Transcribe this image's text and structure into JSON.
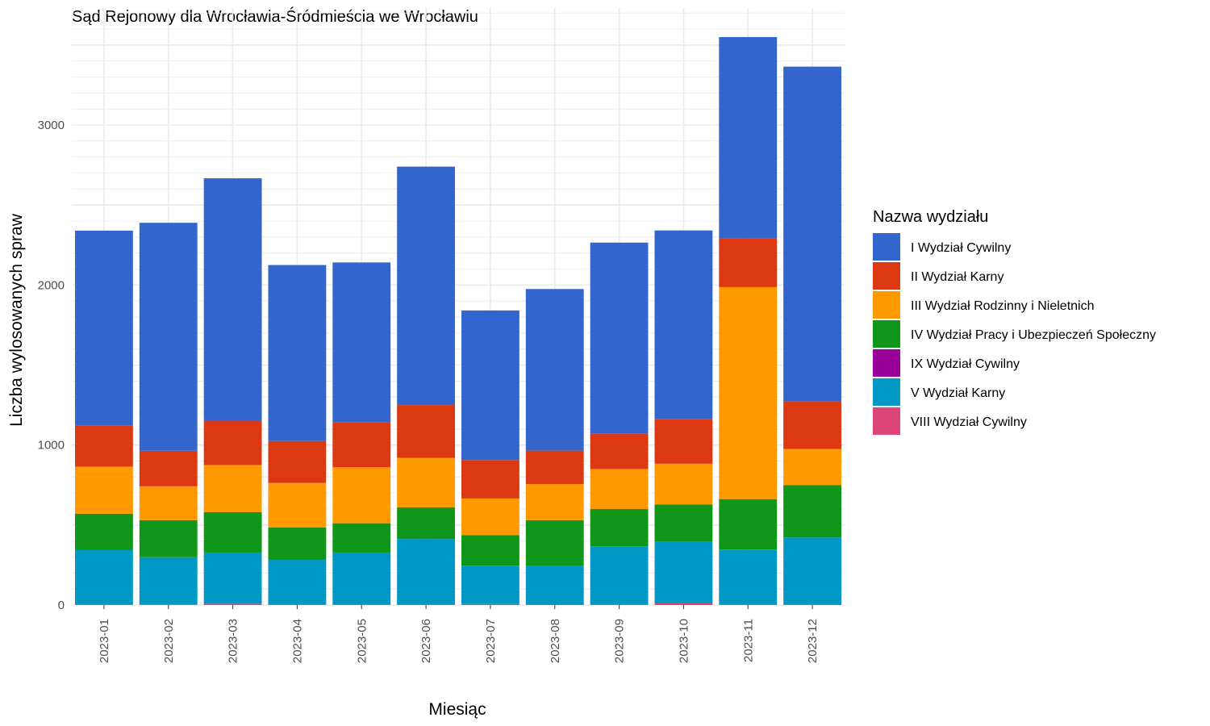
{
  "chart_data": {
    "type": "bar",
    "stacked": true,
    "title": "Sąd Rejonowy dla Wrocławia-Śródmieścia we Wrocławiu",
    "xlabel": "Miesiąc",
    "ylabel": "Liczba wylosowanych spraw",
    "categories": [
      "2023-01",
      "2023-02",
      "2023-03",
      "2023-04",
      "2023-05",
      "2023-06",
      "2023-07",
      "2023-08",
      "2023-09",
      "2023-10",
      "2023-11",
      "2023-12"
    ],
    "yticks": [
      0,
      1000,
      2000,
      3000
    ],
    "yticklabels": [
      "0",
      "1000",
      "2000",
      "3000"
    ],
    "ylim": [
      0,
      3720
    ],
    "grid": true,
    "legend_title": "Nazwa wydziału",
    "legend_position": "right",
    "series": [
      {
        "name": "VIII Wydział Cywilny",
        "color": "#dd4477",
        "values": [
          3,
          4,
          8,
          2,
          3,
          3,
          6,
          5,
          2,
          10,
          2,
          2
        ]
      },
      {
        "name": "V Wydział Karny",
        "color": "#0099c6",
        "values": [
          340,
          295,
          320,
          280,
          325,
          410,
          240,
          240,
          365,
          385,
          345,
          420
        ]
      },
      {
        "name": "IX Wydział Cywilny",
        "color": "#990099",
        "values": [
          0,
          0,
          0,
          0,
          0,
          0,
          0,
          0,
          0,
          0,
          0,
          0
        ]
      },
      {
        "name": "IV Wydział Pracy i Ubezpieczeń Społeczny",
        "color": "#109618",
        "values": [
          227,
          231,
          252,
          203,
          183,
          197,
          190,
          285,
          233,
          233,
          315,
          328
        ]
      },
      {
        "name": "III Wydział Rodzinny i Nieletnich",
        "color": "#ff9900",
        "values": [
          295,
          212,
          295,
          278,
          350,
          310,
          230,
          225,
          250,
          255,
          1325,
          225
        ]
      },
      {
        "name": "II Wydział Karny",
        "color": "#dc3912",
        "values": [
          255,
          222,
          277,
          262,
          280,
          330,
          240,
          210,
          220,
          278,
          305,
          300
        ]
      },
      {
        "name": "I Wydział Cywilny",
        "color": "#3366cc",
        "values": [
          1220,
          1425,
          1515,
          1100,
          1000,
          1490,
          935,
          1010,
          1195,
          1180,
          1258,
          2090
        ]
      }
    ],
    "legend_order": [
      "I Wydział Cywilny",
      "II Wydział Karny",
      "III Wydział Rodzinny i Nieletnich",
      "IV Wydział Pracy i Ubezpieczeń Społeczny",
      "IX Wydział Cywilny",
      "V Wydział Karny",
      "VIII Wydział Cywilny"
    ]
  }
}
